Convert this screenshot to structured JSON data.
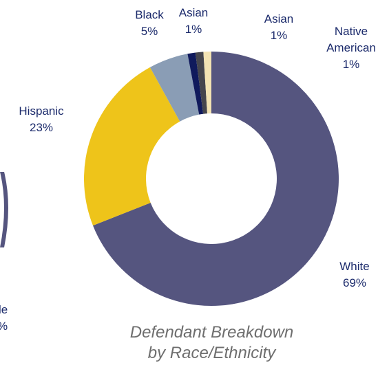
{
  "chart_data": {
    "type": "donut",
    "title": [
      "Defendant Breakdown",
      "by Race/Ethnicity"
    ],
    "categories": [
      "White",
      "Hispanic",
      "Black",
      "Asian",
      "Asian",
      "Native American"
    ],
    "values": [
      69,
      23,
      5,
      1,
      1,
      1
    ],
    "value_labels": [
      "69%",
      "23%",
      "5%",
      "1%",
      "1%",
      "1%"
    ],
    "colors": [
      "#55557f",
      "#eec41a",
      "#8a9db5",
      "#101a5c",
      "#45454d",
      "#f3e3b3"
    ],
    "annotations": [
      "le",
      "%"
    ]
  }
}
